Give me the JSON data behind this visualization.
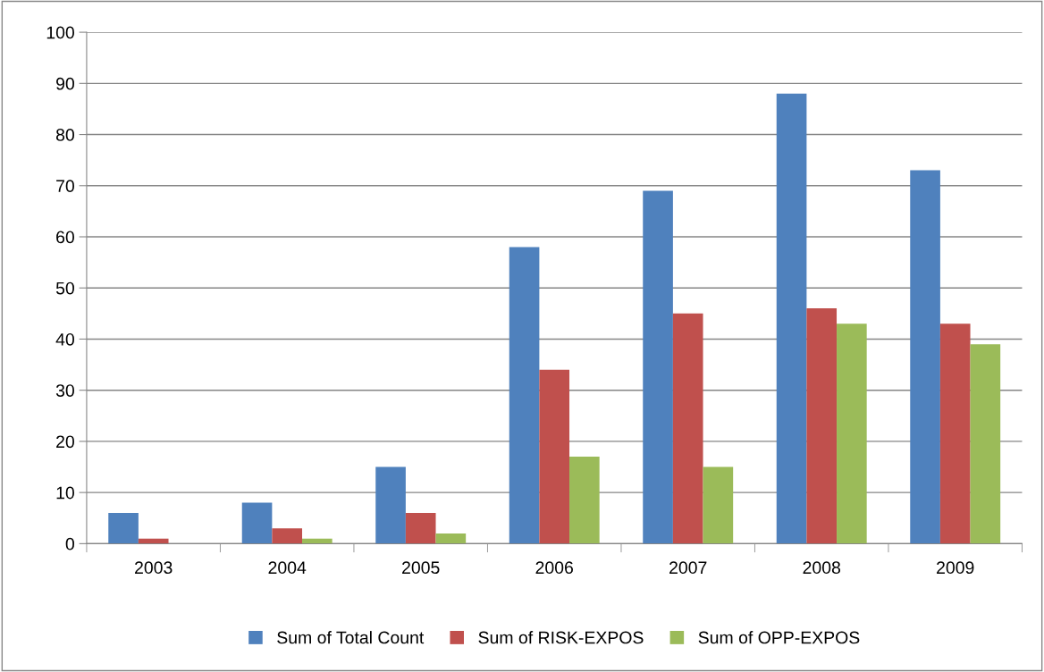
{
  "chart_data": {
    "type": "bar",
    "categories": [
      "2003",
      "2004",
      "2005",
      "2006",
      "2007",
      "2008",
      "2009"
    ],
    "series": [
      {
        "name": "Sum of Total Count",
        "color": "#4f81bd",
        "values": [
          6,
          8,
          15,
          58,
          69,
          88,
          73
        ]
      },
      {
        "name": "Sum of RISK-EXPOS",
        "color": "#c0504d",
        "values": [
          1,
          3,
          6,
          34,
          45,
          46,
          43
        ]
      },
      {
        "name": "Sum of OPP-EXPOS",
        "color": "#9bbb59",
        "values": [
          0,
          1,
          2,
          17,
          15,
          43,
          39
        ]
      }
    ],
    "ylim": [
      0,
      100
    ],
    "yticks": [
      0,
      10,
      20,
      30,
      40,
      50,
      60,
      70,
      80,
      90,
      100
    ],
    "grid": "y",
    "legend": "bottom"
  }
}
